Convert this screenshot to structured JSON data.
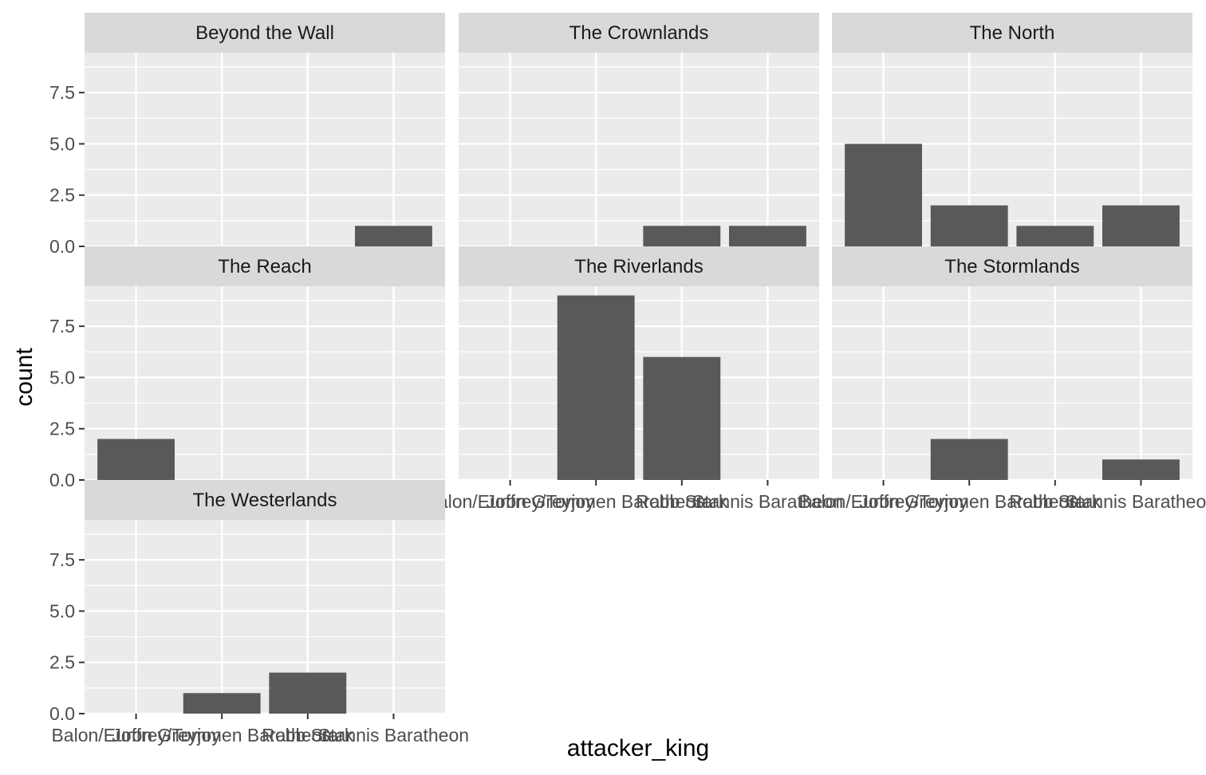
{
  "chart_data": {
    "type": "bar",
    "facet_by": "region",
    "xlabel": "attacker_king",
    "ylabel": "count",
    "ylim": [
      0,
      9.45
    ],
    "y_ticks": [
      "0.0",
      "2.5",
      "5.0",
      "7.5"
    ],
    "y_tick_values": [
      0,
      2.5,
      5,
      7.5
    ],
    "grid": true,
    "categories": [
      "Balon/Euron Greyjoy",
      "Joffrey/Tommen Baratheon",
      "Robb Stark",
      "Stannis Baratheon"
    ],
    "panels": [
      {
        "facet": "Beyond the Wall",
        "values": [
          0,
          0,
          0,
          1
        ]
      },
      {
        "facet": "The Crownlands",
        "values": [
          0,
          0,
          1,
          1
        ]
      },
      {
        "facet": "The North",
        "values": [
          5,
          2,
          1,
          2
        ]
      },
      {
        "facet": "The Reach",
        "values": [
          2,
          0,
          0,
          0
        ]
      },
      {
        "facet": "The Riverlands",
        "values": [
          0,
          9,
          6,
          0
        ]
      },
      {
        "facet": "The Stormlands",
        "values": [
          0,
          2,
          0,
          1
        ]
      },
      {
        "facet": "The Westerlands",
        "values": [
          0,
          1,
          2,
          0
        ]
      }
    ],
    "colors": {
      "panel_background": "#ebebeb",
      "strip_background": "#d9d9d9",
      "grid": "#ffffff",
      "bar": "#595959"
    }
  }
}
